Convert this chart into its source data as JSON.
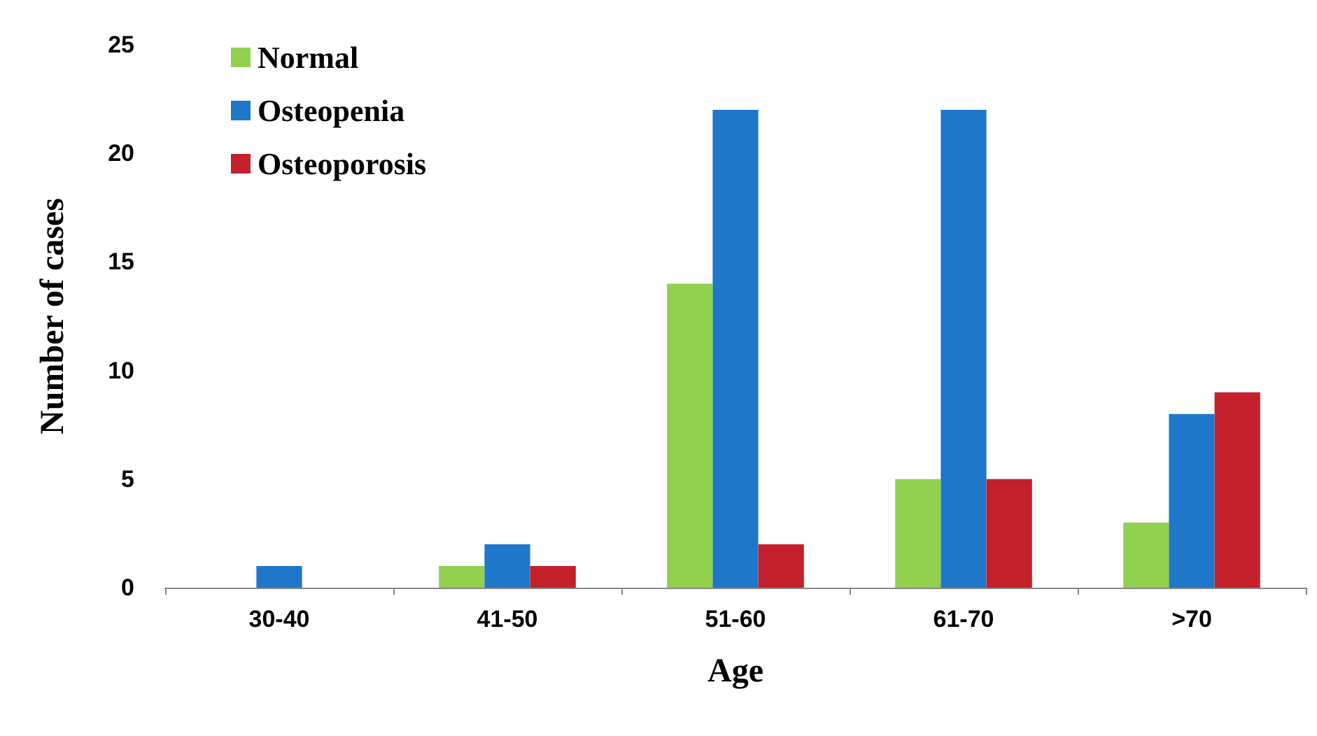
{
  "chart_data": {
    "type": "bar",
    "xlabel": "Age",
    "ylabel": "Number of cases",
    "categories": [
      "30-40",
      "41-50",
      "51-60",
      "61-70",
      ">70"
    ],
    "series": [
      {
        "name": "Normal",
        "color": "#92d050",
        "values": [
          0,
          1,
          14,
          5,
          3
        ]
      },
      {
        "name": "Osteopenia",
        "color": "#1f77c9",
        "values": [
          1,
          2,
          22,
          22,
          8
        ]
      },
      {
        "name": "Osteoporosis",
        "color": "#c4202b",
        "values": [
          0,
          1,
          2,
          5,
          9
        ]
      }
    ],
    "ylim": [
      0,
      25
    ],
    "yticks": [
      0,
      5,
      10,
      15,
      20,
      25
    ],
    "grid": false,
    "legend": "top left"
  }
}
